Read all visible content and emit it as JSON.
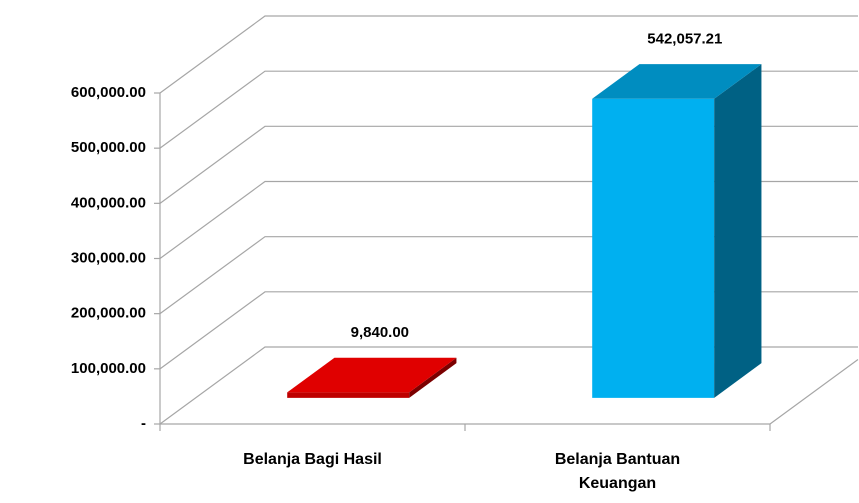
{
  "chart_data": {
    "type": "bar3d",
    "categories": [
      "Belanja Bagi Hasil",
      "Belanja Bantuan Keuangan"
    ],
    "values": [
      9840,
      542057.21
    ],
    "value_labels": [
      "9,840.00",
      "542,057.21"
    ],
    "colors": [
      "#e00000",
      "#00b0f0"
    ],
    "ylim": [
      0,
      600000
    ],
    "yticks": [
      {
        "value": 0,
        "label": "-"
      },
      {
        "value": 100000,
        "label": "100,000.00"
      },
      {
        "value": 200000,
        "label": "200,000.00"
      },
      {
        "value": 300000,
        "label": "300,000.00"
      },
      {
        "value": 400000,
        "label": "400,000.00"
      },
      {
        "value": 500000,
        "label": "500,000.00"
      },
      {
        "value": 600000,
        "label": "600,000.00"
      }
    ],
    "grid": true
  }
}
